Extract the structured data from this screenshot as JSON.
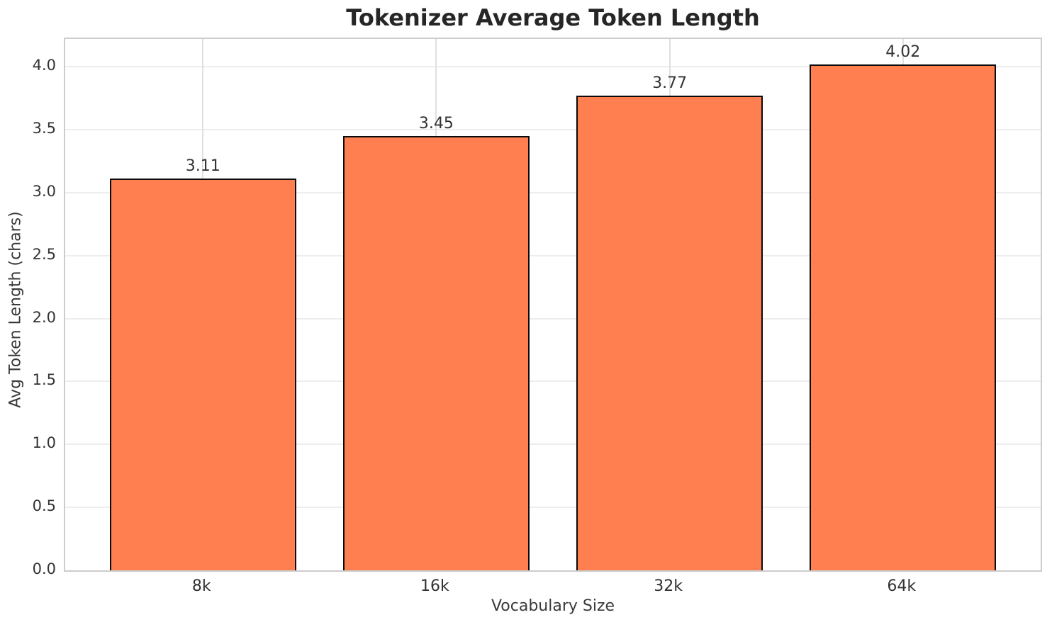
{
  "chart_data": {
    "type": "bar",
    "title": "Tokenizer Average Token Length",
    "xlabel": "Vocabulary Size",
    "ylabel": "Avg Token Length (chars)",
    "categories": [
      "8k",
      "16k",
      "32k",
      "64k"
    ],
    "values": [
      3.11,
      3.45,
      3.77,
      4.02
    ],
    "value_labels": [
      "3.11",
      "3.45",
      "3.77",
      "4.02"
    ],
    "yticks": [
      0.0,
      0.5,
      1.0,
      1.5,
      2.0,
      2.5,
      3.0,
      3.5,
      4.0
    ],
    "ytick_labels": [
      "0.0",
      "0.5",
      "1.0",
      "1.5",
      "2.0",
      "2.5",
      "3.0",
      "3.5",
      "4.0"
    ],
    "ylim": [
      0,
      4.22
    ],
    "grid": true,
    "legend_position": "none",
    "bar_color": "#ff7f50",
    "bar_edge_color": "#0a0a0a",
    "gridline_color": "#ededed",
    "spine_color": "#cccccc",
    "background_color": "#ffffff"
  }
}
